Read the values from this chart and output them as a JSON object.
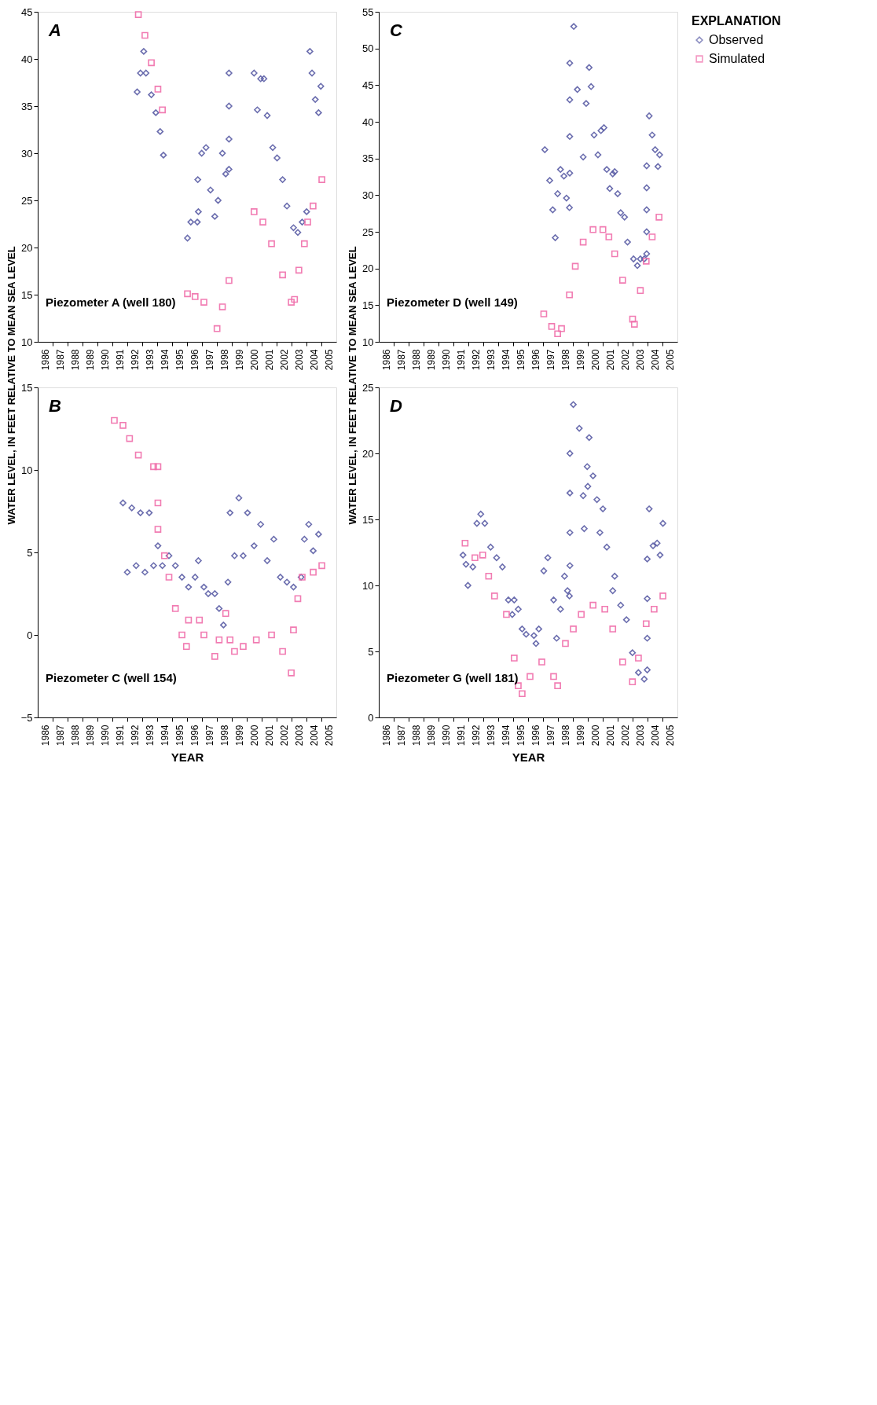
{
  "chart_data": [
    {
      "type": "scatter",
      "annotations": [
        "A",
        "Piezometer A (well 180)"
      ],
      "ylabel": "WATER LEVEL, IN FEET RELATIVE TO MEAN SEA LEVEL",
      "xlim": [
        1986,
        2006
      ],
      "xticks": [
        {
          "value": 1986.5,
          "label": "1986"
        },
        {
          "value": 1987.5,
          "label": "1987"
        },
        {
          "value": 1988.5,
          "label": "1988"
        },
        {
          "value": 1989.5,
          "label": "1989"
        },
        {
          "value": 1990.5,
          "label": "1990"
        },
        {
          "value": 1991.5,
          "label": "1991"
        },
        {
          "value": 1992.5,
          "label": "1992"
        },
        {
          "value": 1993.5,
          "label": "1993"
        },
        {
          "value": 1994.5,
          "label": "1994"
        },
        {
          "value": 1995.5,
          "label": "1995"
        },
        {
          "value": 1996.5,
          "label": "1996"
        },
        {
          "value": 1997.5,
          "label": "1997"
        },
        {
          "value": 1998.5,
          "label": "1998"
        },
        {
          "value": 1999.5,
          "label": "1999"
        },
        {
          "value": 2000.5,
          "label": "2000"
        },
        {
          "value": 2001.5,
          "label": "2001"
        },
        {
          "value": 2002.5,
          "label": "2002"
        },
        {
          "value": 2003.5,
          "label": "2003"
        },
        {
          "value": 2004.5,
          "label": "2004"
        },
        {
          "value": 2005.5,
          "label": "2005"
        },
        {
          "value": 1987,
          "label": null
        },
        {
          "value": 1988,
          "label": null
        },
        {
          "value": 1989,
          "label": null
        },
        {
          "value": 1990,
          "label": null
        },
        {
          "value": 1991,
          "label": null
        },
        {
          "value": 1992,
          "label": null
        },
        {
          "value": 1993,
          "label": null
        },
        {
          "value": 1994,
          "label": null
        },
        {
          "value": 1995,
          "label": null
        },
        {
          "value": 1996,
          "label": null
        },
        {
          "value": 1997,
          "label": null
        },
        {
          "value": 1998,
          "label": null
        },
        {
          "value": 1999,
          "label": null
        },
        {
          "value": 2000,
          "label": null
        },
        {
          "value": 2001,
          "label": null
        },
        {
          "value": 2002,
          "label": null
        },
        {
          "value": 2003,
          "label": null
        },
        {
          "value": 2004,
          "label": null
        },
        {
          "value": 2005,
          "label": null
        }
      ],
      "ylim": [
        10,
        45
      ],
      "yticks": [
        10,
        15,
        20,
        25,
        30,
        35,
        40,
        45
      ],
      "grid": false,
      "series": [
        {
          "color": "#5b5ea6",
          "marker": "diamond",
          "x": [
            1992.66,
            1992.88,
            1993.1,
            1993.25,
            1993.61,
            1993.91,
            1994.2,
            1994.42,
            1996.03,
            1996.25,
            1996.69,
            1996.76,
            1996.72,
            1996.98,
            1997.27,
            1997.57,
            1997.86,
            1998.08,
            1998.37,
            1998.59,
            1998.81,
            1998.81,
            1998.81,
            1998.81,
            2000.49,
            2000.71,
            2000.93,
            2001.15,
            2001.37,
            2001.74,
            2002.03,
            2002.4,
            2002.69,
            2003.13,
            2003.42,
            2003.71,
            2004.01,
            2004.23,
            2004.37,
            2004.59,
            2004.81,
            2004.96
          ],
          "values": [
            36.5,
            38.5,
            40.8,
            38.5,
            36.2,
            34.3,
            32.3,
            29.8,
            21,
            22.7,
            22.7,
            23.8,
            27.2,
            30,
            30.6,
            26.1,
            23.3,
            25,
            30,
            27.8,
            28.3,
            31.5,
            35,
            38.5,
            38.5,
            34.6,
            37.9,
            37.9,
            34,
            30.6,
            29.5,
            27.2,
            24.4,
            22.1,
            21.6,
            22.7,
            23.8,
            40.8,
            38.5,
            35.7,
            34.3,
            37.1
          ]
        },
        {
          "color": "#f06eaa",
          "marker": "square",
          "x": [
            1992.74,
            1993.18,
            1993.61,
            1994.05,
            1994.35,
            1996.03,
            1996.54,
            1997.13,
            1998.01,
            1998.37,
            1998.81,
            2000.49,
            2001.08,
            2001.66,
            2002.4,
            2002.98,
            2003.2,
            2003.49,
            2003.86,
            2004.08,
            2004.44,
            2005.03
          ],
          "values": [
            44.7,
            42.5,
            39.6,
            36.8,
            34.6,
            15.1,
            14.8,
            14.2,
            11.4,
            13.7,
            16.5,
            23.8,
            22.7,
            20.4,
            17.1,
            14.2,
            14.5,
            17.6,
            20.4,
            22.7,
            24.4,
            27.2
          ]
        }
      ]
    },
    {
      "type": "scatter",
      "annotations": [
        "B",
        "Piezometer C (well 154)"
      ],
      "xlabel": "YEAR",
      "legend": "right",
      "legend_title": "EXPLANATION",
      "xlim": [
        1986,
        2006
      ],
      "xticks": [
        {
          "value": 1986.5,
          "label": "1986"
        },
        {
          "value": 1987.5,
          "label": "1987"
        },
        {
          "value": 1988.5,
          "label": "1988"
        },
        {
          "value": 1989.5,
          "label": "1989"
        },
        {
          "value": 1990.5,
          "label": "1990"
        },
        {
          "value": 1991.5,
          "label": "1991"
        },
        {
          "value": 1992.5,
          "label": "1992"
        },
        {
          "value": 1993.5,
          "label": "1993"
        },
        {
          "value": 1994.5,
          "label": "1994"
        },
        {
          "value": 1995.5,
          "label": "1995"
        },
        {
          "value": 1996.5,
          "label": "1996"
        },
        {
          "value": 1997.5,
          "label": "1997"
        },
        {
          "value": 1998.5,
          "label": "1998"
        },
        {
          "value": 1999.5,
          "label": "1999"
        },
        {
          "value": 2000.5,
          "label": "2000"
        },
        {
          "value": 2001.5,
          "label": "2001"
        },
        {
          "value": 2002.5,
          "label": "2002"
        },
        {
          "value": 2003.5,
          "label": "2003"
        },
        {
          "value": 2004.5,
          "label": "2004"
        },
        {
          "value": 2005.5,
          "label": "2005"
        },
        {
          "value": 1987,
          "label": null
        },
        {
          "value": 1988,
          "label": null
        },
        {
          "value": 1989,
          "label": null
        },
        {
          "value": 1990,
          "label": null
        },
        {
          "value": 1991,
          "label": null
        },
        {
          "value": 1992,
          "label": null
        },
        {
          "value": 1993,
          "label": null
        },
        {
          "value": 1994,
          "label": null
        },
        {
          "value": 1995,
          "label": null
        },
        {
          "value": 1996,
          "label": null
        },
        {
          "value": 1997,
          "label": null
        },
        {
          "value": 1998,
          "label": null
        },
        {
          "value": 1999,
          "label": null
        },
        {
          "value": 2000,
          "label": null
        },
        {
          "value": 2001,
          "label": null
        },
        {
          "value": 2002,
          "label": null
        },
        {
          "value": 2003,
          "label": null
        },
        {
          "value": 2004,
          "label": null
        },
        {
          "value": 2005,
          "label": null
        }
      ],
      "ylim": [
        -5,
        15
      ],
      "yticks": [
        -5,
        0,
        5,
        10,
        15
      ],
      "grid": false,
      "series": [
        {
          "name": "Observed",
          "color": "#5b5ea6",
          "marker": "diamond",
          "x": [
            1991.71,
            1992.0,
            1992.3,
            1992.59,
            1992.88,
            1993.18,
            1993.47,
            1993.76,
            1994.05,
            1994.35,
            1994.79,
            1995.22,
            1995.66,
            1996.1,
            1996.54,
            1996.76,
            1997.13,
            1997.42,
            1997.86,
            1998.15,
            1998.44,
            1998.74,
            1998.88,
            1999.18,
            1999.47,
            1999.76,
            2000.05,
            2000.49,
            2000.93,
            2001.37,
            2001.81,
            2002.25,
            2002.69,
            2003.13,
            2003.64,
            2003.86,
            2004.15,
            2004.45,
            2004.81
          ],
          "values": [
            8,
            3.8,
            7.7,
            4.2,
            7.4,
            3.8,
            7.4,
            4.2,
            5.4,
            4.2,
            4.8,
            4.2,
            3.5,
            2.9,
            3.5,
            4.5,
            2.9,
            2.5,
            2.5,
            1.6,
            0.6,
            3.2,
            7.4,
            4.8,
            8.3,
            4.8,
            7.4,
            5.4,
            6.7,
            4.5,
            5.8,
            3.5,
            3.2,
            2.9,
            3.5,
            5.8,
            6.7,
            5.1,
            6.1
          ]
        },
        {
          "name": "Simulated",
          "color": "#f06eaa",
          "marker": "square",
          "x": [
            1991.13,
            1991.71,
            1992.15,
            1992.74,
            1993.76,
            1994.05,
            1994.05,
            1994.05,
            1994.49,
            1994.79,
            1995.22,
            1995.66,
            1995.96,
            1996.1,
            1996.83,
            1997.13,
            1997.86,
            1998.15,
            1998.59,
            1998.88,
            1999.18,
            1999.76,
            2000.64,
            2001.66,
            2002.4,
            2002.98,
            2003.13,
            2003.42,
            2003.71,
            2004.45,
            2005.03
          ],
          "values": [
            13,
            12.7,
            11.9,
            10.9,
            10.2,
            10.2,
            8,
            6.4,
            4.8,
            3.5,
            1.6,
            0,
            -0.7,
            0.9,
            0.9,
            0,
            -1.3,
            -0.3,
            1.3,
            -0.3,
            -1,
            -0.7,
            -0.3,
            0,
            -1,
            -2.3,
            0.3,
            2.2,
            3.5,
            3.8,
            4.2
          ]
        }
      ]
    },
    {
      "type": "scatter",
      "annotations": [
        "C",
        "Piezometer D (well 149)"
      ],
      "ylabel": "WATER LEVEL, IN FEET RELATIVE TO MEAN SEA LEVEL",
      "xlim": [
        1986,
        2006
      ],
      "xticks": [
        {
          "value": 1986.5,
          "label": "1986"
        },
        {
          "value": 1987.5,
          "label": "1987"
        },
        {
          "value": 1988.5,
          "label": "1988"
        },
        {
          "value": 1989.5,
          "label": "1989"
        },
        {
          "value": 1990.5,
          "label": "1990"
        },
        {
          "value": 1991.5,
          "label": "1991"
        },
        {
          "value": 1992.5,
          "label": "1992"
        },
        {
          "value": 1993.5,
          "label": "1993"
        },
        {
          "value": 1994.5,
          "label": "1994"
        },
        {
          "value": 1995.5,
          "label": "1995"
        },
        {
          "value": 1996.5,
          "label": "1996"
        },
        {
          "value": 1997.5,
          "label": "1997"
        },
        {
          "value": 1998.5,
          "label": "1998"
        },
        {
          "value": 1999.5,
          "label": "1999"
        },
        {
          "value": 2000.5,
          "label": "2000"
        },
        {
          "value": 2001.5,
          "label": "2001"
        },
        {
          "value": 2002.5,
          "label": "2002"
        },
        {
          "value": 2003.5,
          "label": "2003"
        },
        {
          "value": 2004.5,
          "label": "2004"
        },
        {
          "value": 2005.5,
          "label": "2005"
        },
        {
          "value": 1987,
          "label": null
        },
        {
          "value": 1988,
          "label": null
        },
        {
          "value": 1989,
          "label": null
        },
        {
          "value": 1990,
          "label": null
        },
        {
          "value": 1991,
          "label": null
        },
        {
          "value": 1992,
          "label": null
        },
        {
          "value": 1993,
          "label": null
        },
        {
          "value": 1994,
          "label": null
        },
        {
          "value": 1995,
          "label": null
        },
        {
          "value": 1996,
          "label": null
        },
        {
          "value": 1997,
          "label": null
        },
        {
          "value": 1998,
          "label": null
        },
        {
          "value": 1999,
          "label": null
        },
        {
          "value": 2000,
          "label": null
        },
        {
          "value": 2001,
          "label": null
        },
        {
          "value": 2002,
          "label": null
        },
        {
          "value": 2003,
          "label": null
        },
        {
          "value": 2004,
          "label": null
        },
        {
          "value": 2005,
          "label": null
        }
      ],
      "ylim": [
        10,
        55
      ],
      "yticks": [
        10,
        15,
        20,
        25,
        30,
        35,
        40,
        45,
        50,
        55
      ],
      "grid": false,
      "series": [
        {
          "color": "#5b5ea6",
          "marker": "diamond",
          "x": [
            1997.12,
            1997.45,
            1997.65,
            1997.82,
            1997.98,
            1998.17,
            1998.4,
            1998.57,
            1998.77,
            1998.79,
            1998.79,
            1998.79,
            1998.79,
            1999.06,
            1999.3,
            1999.69,
            1999.89,
            2000.09,
            2000.22,
            2000.42,
            2000.68,
            2000.88,
            2001.08,
            2001.27,
            2001.47,
            2001.67,
            2001.8,
            2002.0,
            2002.2,
            2002.46,
            2002.66,
            2003.06,
            2003.32,
            2003.52,
            2003.78,
            2003.94,
            2003.94,
            2003.94,
            2003.94,
            2003.94,
            2004.11,
            2004.31,
            2004.51,
            2004.7,
            2004.81
          ],
          "values": [
            36.2,
            32,
            28,
            24.2,
            30.2,
            33.5,
            32.6,
            29.6,
            28.3,
            33,
            38,
            43,
            48,
            53,
            44.4,
            35.2,
            42.5,
            47.4,
            44.8,
            38.2,
            35.5,
            38.8,
            39.2,
            33.5,
            30.9,
            32.9,
            33.2,
            30.2,
            27.6,
            27,
            23.6,
            21.3,
            20.4,
            21.3,
            21.3,
            22,
            25,
            28,
            31,
            34,
            40.8,
            38.2,
            36.2,
            33.9,
            35.5
          ]
        },
        {
          "color": "#f06eaa",
          "marker": "square",
          "x": [
            1997.05,
            1997.58,
            1997.98,
            1998.24,
            1998.77,
            1999.16,
            1999.69,
            2000.35,
            2001.01,
            2001.41,
            2001.8,
            2002.33,
            2003.0,
            2003.12,
            2003.52,
            2003.91,
            2004.31,
            2004.77
          ],
          "values": [
            13.8,
            12.1,
            11.1,
            11.8,
            16.4,
            20.3,
            23.6,
            25.3,
            25.3,
            24.3,
            22,
            18.4,
            13.1,
            12.4,
            17,
            21,
            24.3,
            27
          ]
        }
      ]
    },
    {
      "type": "scatter",
      "annotations": [
        "D",
        "Piezometer G (well 181)"
      ],
      "xlabel": "YEAR",
      "xlim": [
        1986,
        2006
      ],
      "xticks": [
        {
          "value": 1986.5,
          "label": "1986"
        },
        {
          "value": 1987.5,
          "label": "1987"
        },
        {
          "value": 1988.5,
          "label": "1988"
        },
        {
          "value": 1989.5,
          "label": "1989"
        },
        {
          "value": 1990.5,
          "label": "1990"
        },
        {
          "value": 1991.5,
          "label": "1991"
        },
        {
          "value": 1992.5,
          "label": "1992"
        },
        {
          "value": 1993.5,
          "label": "1993"
        },
        {
          "value": 1994.5,
          "label": "1994"
        },
        {
          "value": 1995.5,
          "label": "1995"
        },
        {
          "value": 1996.5,
          "label": "1996"
        },
        {
          "value": 1997.5,
          "label": "1997"
        },
        {
          "value": 1998.5,
          "label": "1998"
        },
        {
          "value": 1999.5,
          "label": "1999"
        },
        {
          "value": 2000.5,
          "label": "2000"
        },
        {
          "value": 2001.5,
          "label": "2001"
        },
        {
          "value": 2002.5,
          "label": "2002"
        },
        {
          "value": 2003.5,
          "label": "2003"
        },
        {
          "value": 2004.5,
          "label": "2004"
        },
        {
          "value": 2005.5,
          "label": "2005"
        },
        {
          "value": 1987,
          "label": null
        },
        {
          "value": 1988,
          "label": null
        },
        {
          "value": 1989,
          "label": null
        },
        {
          "value": 1990,
          "label": null
        },
        {
          "value": 1991,
          "label": null
        },
        {
          "value": 1992,
          "label": null
        },
        {
          "value": 1993,
          "label": null
        },
        {
          "value": 1994,
          "label": null
        },
        {
          "value": 1995,
          "label": null
        },
        {
          "value": 1996,
          "label": null
        },
        {
          "value": 1997,
          "label": null
        },
        {
          "value": 1998,
          "label": null
        },
        {
          "value": 1999,
          "label": null
        },
        {
          "value": 2000,
          "label": null
        },
        {
          "value": 2001,
          "label": null
        },
        {
          "value": 2002,
          "label": null
        },
        {
          "value": 2003,
          "label": null
        },
        {
          "value": 2004,
          "label": null
        },
        {
          "value": 2005,
          "label": null
        }
      ],
      "ylim": [
        0,
        25
      ],
      "yticks": [
        0,
        5,
        10,
        15,
        20,
        25
      ],
      "grid": false,
      "series": [
        {
          "color": "#5b5ea6",
          "marker": "diamond",
          "x": [
            1991.64,
            1991.84,
            1991.97,
            1992.3,
            1992.57,
            1992.83,
            1993.1,
            1993.49,
            1993.89,
            1994.28,
            1994.68,
            1994.94,
            1995.07,
            1995.34,
            1995.6,
            1995.87,
            1996.39,
            1996.53,
            1996.72,
            1997.05,
            1997.32,
            1997.71,
            1997.91,
            1998.17,
            1998.44,
            1998.64,
            1998.77,
            1998.8,
            1998.8,
            1998.8,
            1998.8,
            1999.03,
            1999.43,
            1999.69,
            1999.76,
            1999.96,
            2000.0,
            2000.09,
            2000.35,
            2000.61,
            2000.81,
            2001.01,
            2001.27,
            2001.67,
            2001.8,
            2002.2,
            2002.59,
            2002.99,
            2003.39,
            2003.78,
            2003.98,
            2003.98,
            2003.98,
            2003.98,
            2004.11,
            2004.37,
            2004.64,
            2004.84,
            2005.03
          ],
          "values": [
            12.3,
            11.6,
            10,
            11.4,
            14.7,
            15.4,
            14.7,
            12.9,
            12.1,
            11.4,
            8.9,
            7.8,
            8.9,
            8.2,
            6.7,
            6.3,
            6.2,
            5.6,
            6.7,
            11.1,
            12.1,
            8.9,
            6,
            8.2,
            10.7,
            9.6,
            9.2,
            11.5,
            14,
            17,
            20,
            23.7,
            21.9,
            16.8,
            14.3,
            19,
            17.5,
            21.2,
            18.3,
            16.5,
            14,
            15.8,
            12.9,
            9.6,
            10.7,
            8.5,
            7.4,
            4.9,
            3.4,
            2.9,
            3.6,
            6,
            9,
            12,
            15.8,
            13,
            13.2,
            12.3,
            14.7
          ]
        },
        {
          "color": "#f06eaa",
          "marker": "square",
          "x": [
            1991.78,
            1992.44,
            1992.96,
            1993.36,
            1993.75,
            1994.55,
            1995.07,
            1995.34,
            1995.6,
            1996.13,
            1996.92,
            1997.71,
            1997.98,
            1998.5,
            1999.03,
            1999.56,
            2000.35,
            2001.14,
            2001.67,
            2002.33,
            2002.99,
            2003.39,
            2003.91,
            2004.44,
            2005.03
          ],
          "values": [
            13.2,
            12.1,
            12.3,
            10.7,
            9.2,
            7.8,
            4.5,
            2.4,
            1.8,
            3.1,
            4.2,
            3.1,
            2.4,
            5.6,
            6.7,
            7.8,
            8.5,
            8.2,
            6.7,
            4.2,
            2.7,
            4.5,
            7.1,
            8.2,
            9.2
          ]
        }
      ]
    }
  ]
}
